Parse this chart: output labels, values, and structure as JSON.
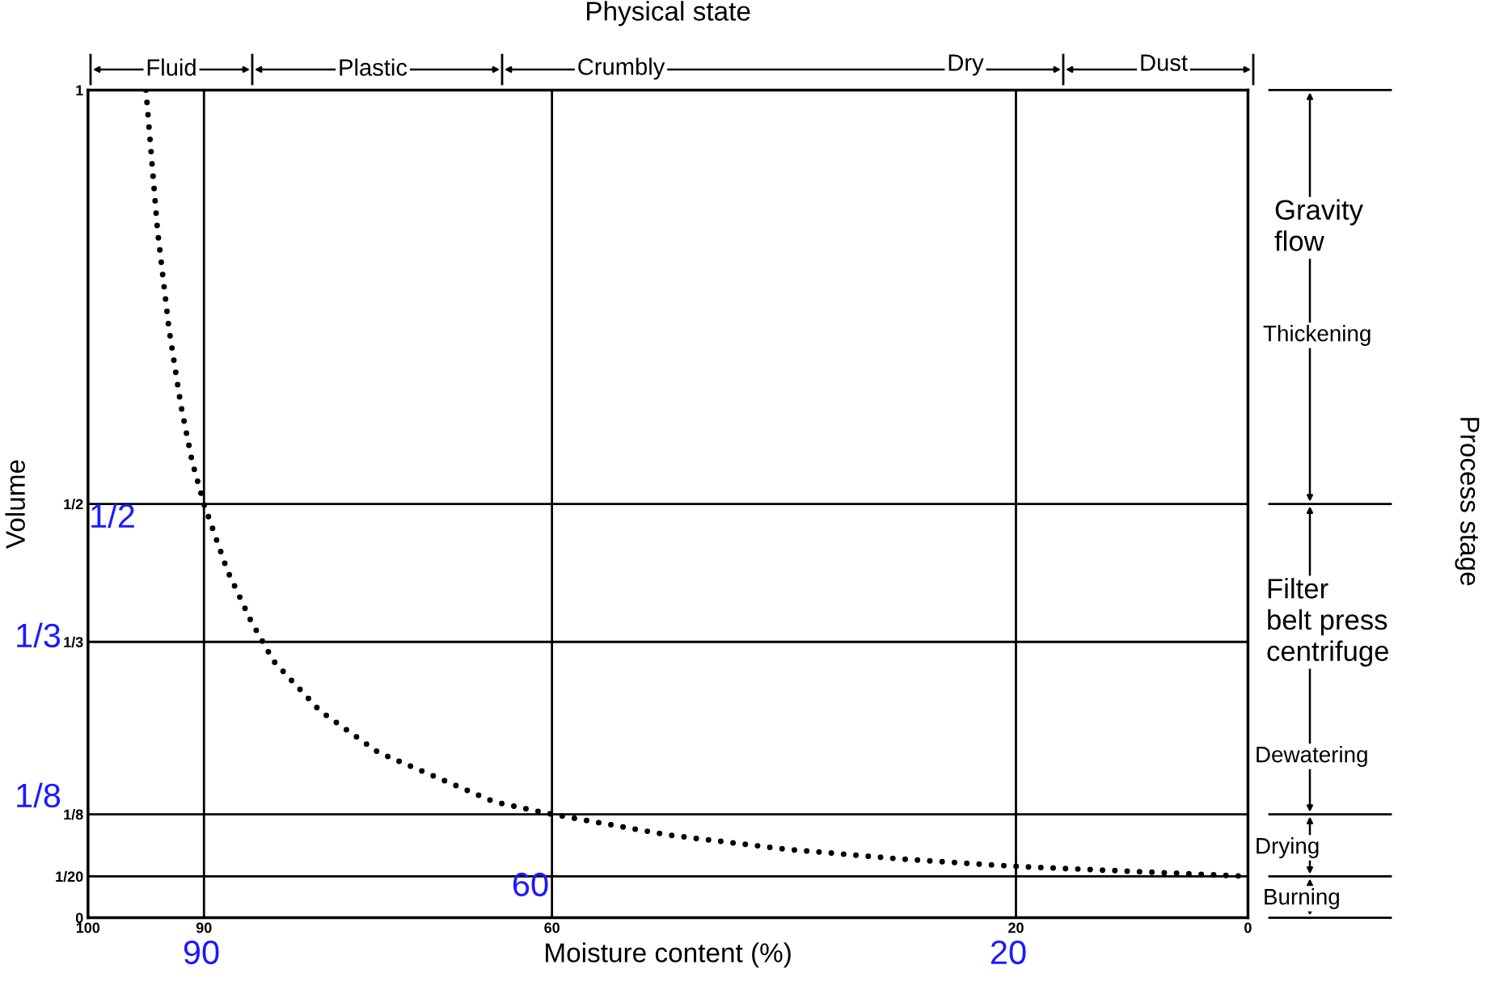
{
  "chart_data": {
    "type": "line",
    "title": "Physical state",
    "xlabel": "Moisture content (%)",
    "ylabel": "Volume",
    "x": [
      95,
      94,
      93,
      92,
      91,
      90,
      88,
      86,
      84,
      82,
      80,
      75,
      70,
      65,
      60,
      50,
      40,
      30,
      20,
      10,
      0
    ],
    "series": [
      {
        "color": "#000000",
        "values": [
          1,
          0.83,
          0.71,
          0.62,
          0.55,
          0.5,
          0.42,
          0.36,
          0.31,
          0.28,
          0.25,
          0.2,
          0.17,
          0.14,
          0.125,
          0.1,
          0.083,
          0.071,
          0.062,
          0.056,
          0.05
        ]
      }
    ],
    "xlim": [
      100,
      0
    ],
    "xticks": [
      100,
      90,
      60,
      20,
      0
    ],
    "ylim": [
      0,
      1
    ],
    "yticks": [
      0,
      {
        "value": 0.05,
        "label": "1/20"
      },
      {
        "value": 0.125,
        "label": "1/8"
      },
      {
        "value": 0.3333,
        "label": "1/3"
      },
      {
        "value": 0.5,
        "label": "1/2"
      },
      1
    ],
    "grid": true,
    "line_style": "dotted",
    "marker": "none",
    "annotations": [
      "Fluid",
      "Plastic",
      "Crumbly",
      "Dry",
      "Dust",
      "Gravity\nflow",
      "Thickening",
      "Filter\nbelt press\ncentrifuge",
      "Dewatering",
      "Drying",
      "Burning",
      "1/2",
      "1/3",
      "1/8",
      "60",
      "90",
      "20",
      "Process stage"
    ]
  }
}
